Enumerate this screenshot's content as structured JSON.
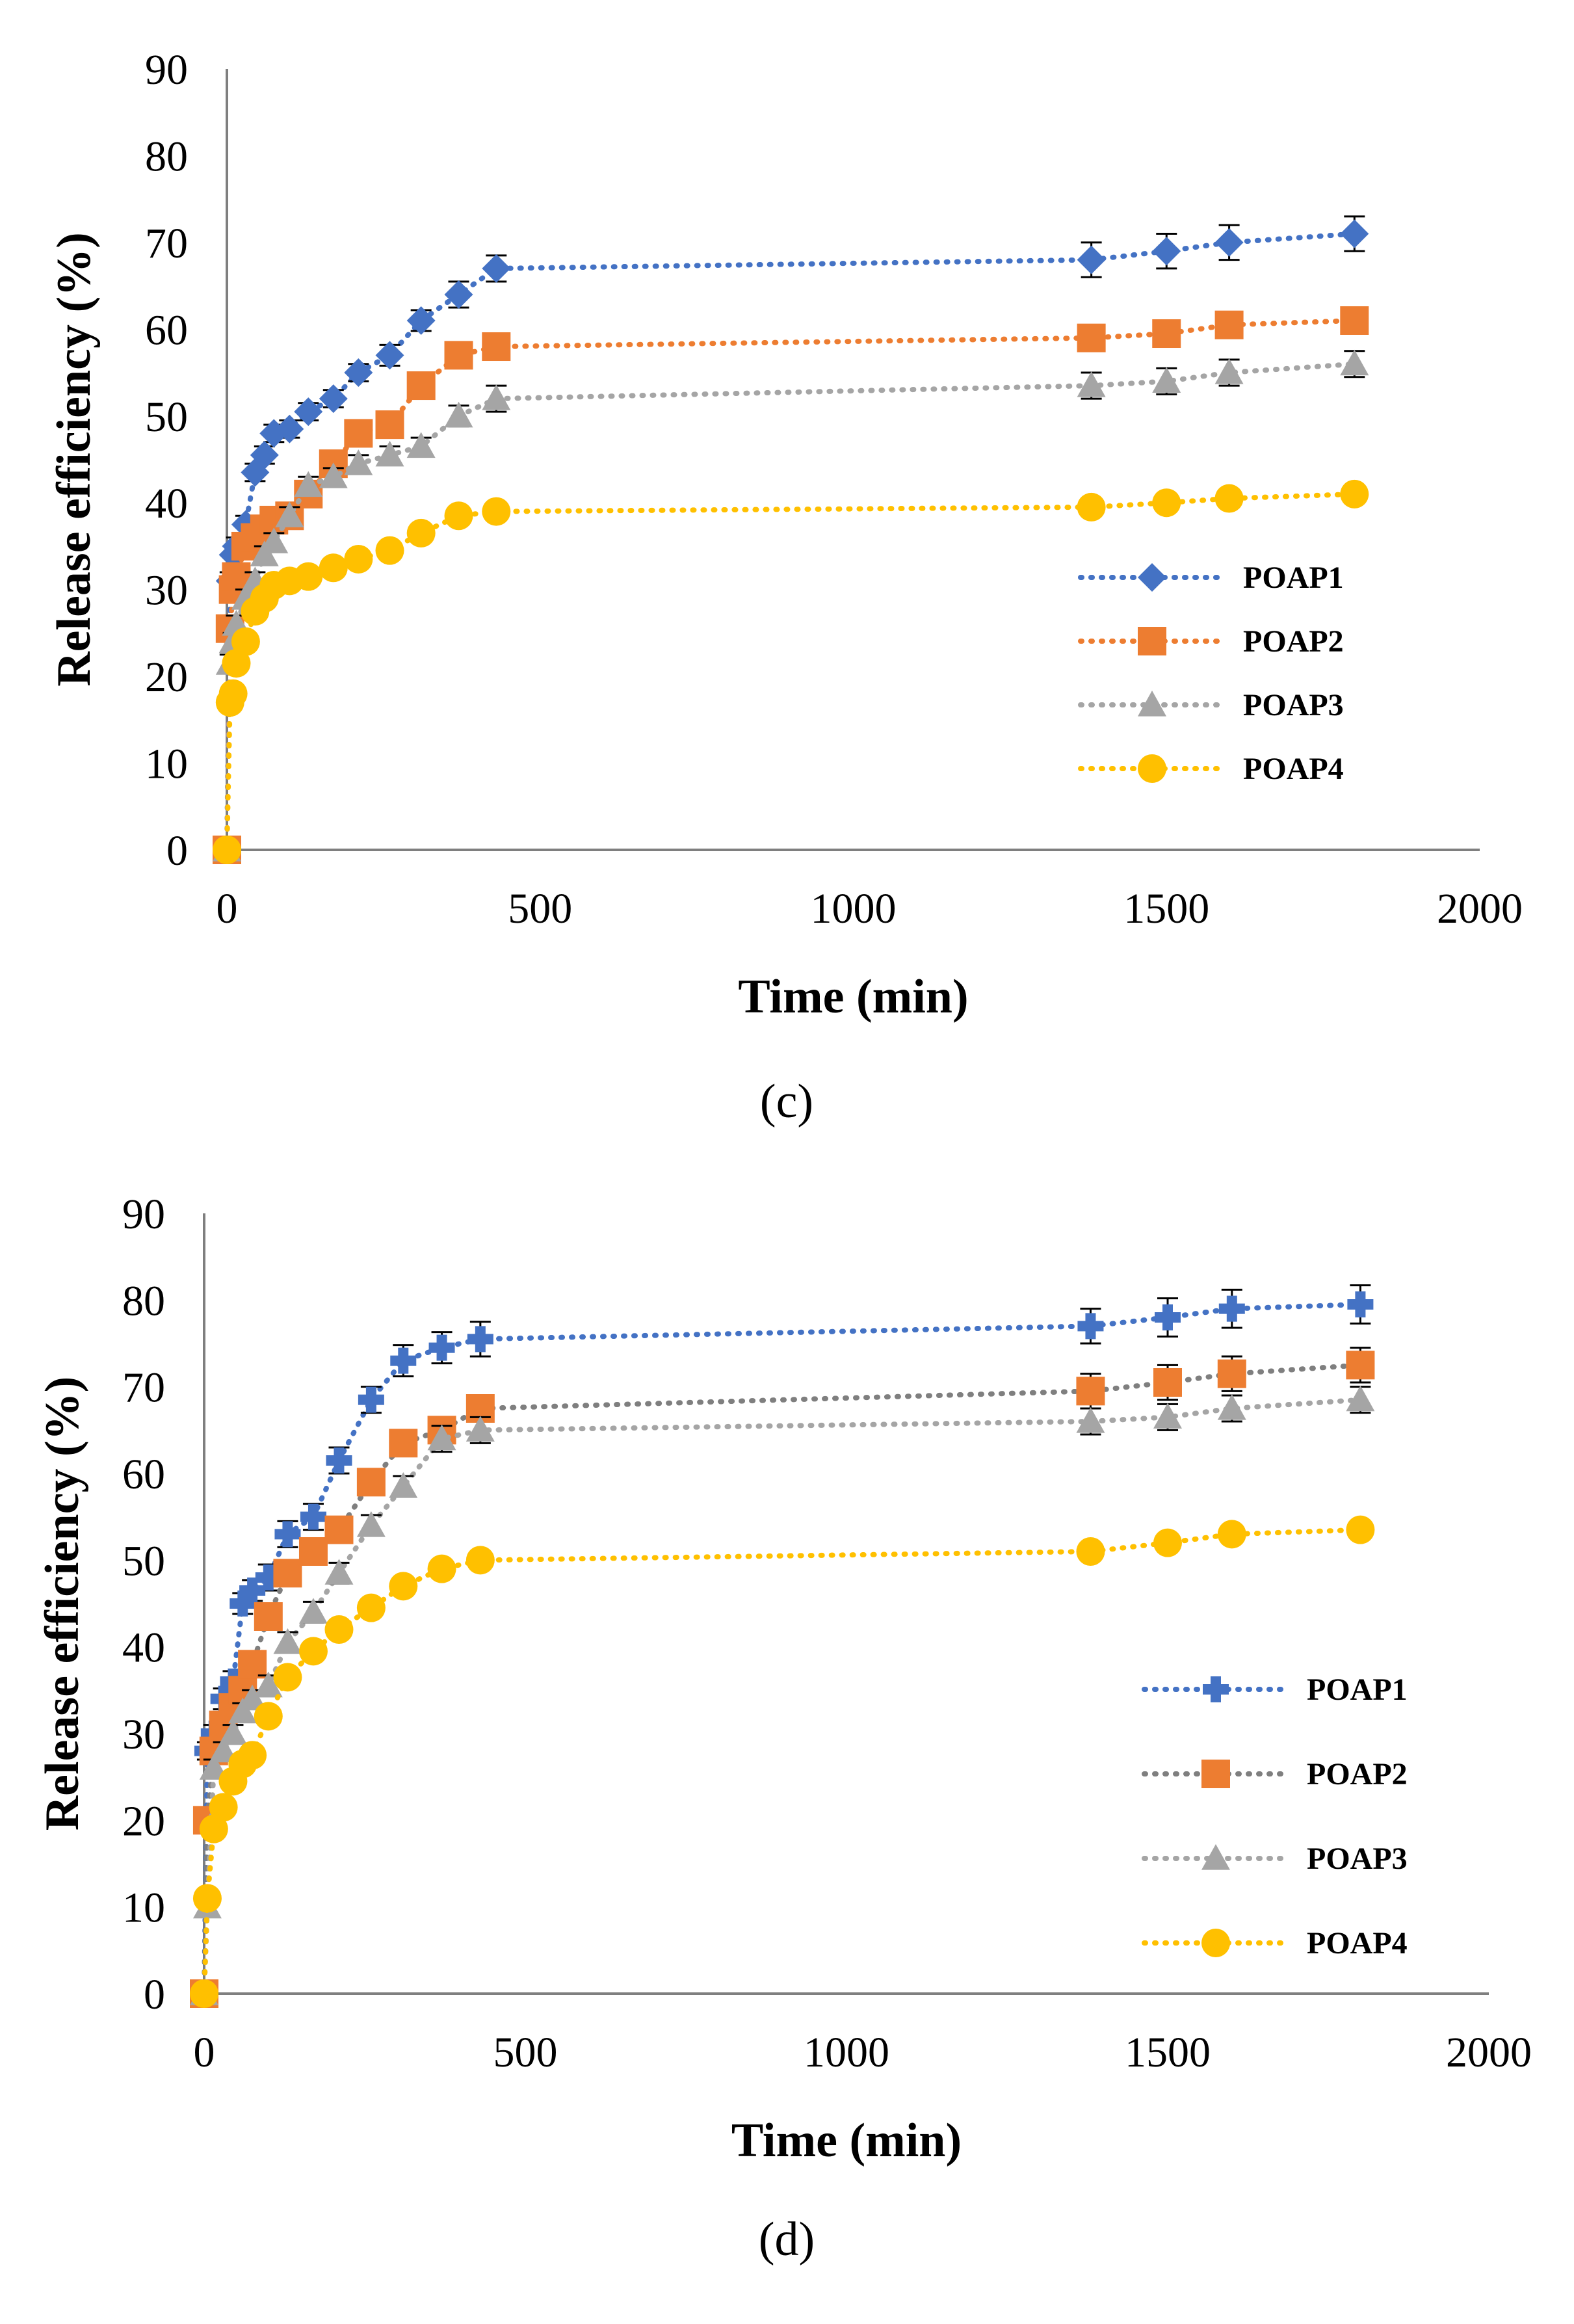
{
  "chart_data": [
    {
      "type": "line",
      "panel_label": "(c)",
      "panel_letter": "c",
      "xlabel": "Time (min)",
      "ylabel": "Release efficiency (%)",
      "xlim": [
        0,
        2000
      ],
      "ylim": [
        0,
        90
      ],
      "xticks": [
        "0",
        "500",
        "1000",
        "1500",
        "2000"
      ],
      "yticks": [
        "0",
        "10",
        "20",
        "30",
        "40",
        "50",
        "60",
        "70",
        "80",
        "90"
      ],
      "grid": false,
      "legend_position": "right",
      "x": [
        0,
        5,
        10,
        15,
        30,
        45,
        60,
        75,
        100,
        130,
        170,
        210,
        260,
        310,
        370,
        430,
        1380,
        1500,
        1600,
        1800
      ],
      "series": [
        {
          "name": "POAP1",
          "color": "#4472c4",
          "marker": "diamond",
          "values": [
            0,
            31,
            34,
            35,
            37.5,
            43.5,
            45.5,
            48,
            48.5,
            50.5,
            52,
            55,
            57,
            61,
            64,
            67,
            68,
            69,
            70,
            71
          ],
          "errors": [
            0,
            1,
            1,
            1,
            1,
            1,
            1,
            1,
            1,
            1,
            1,
            1,
            1.2,
            1.2,
            1.5,
            1.5,
            2,
            2,
            2,
            2
          ]
        },
        {
          "name": "POAP2",
          "color": "#ed7d31",
          "marker": "square",
          "values": [
            0,
            25.5,
            30,
            31.5,
            35,
            36,
            37,
            38,
            38.5,
            41,
            44.5,
            48,
            49,
            53.5,
            57,
            58,
            59,
            59.5,
            60.5,
            61
          ],
          "errors": [
            0,
            1,
            1,
            1,
            1,
            1,
            1,
            1,
            1,
            1,
            1,
            1,
            1,
            1.2,
            1.5,
            1.5,
            1.5,
            1.5,
            1.5,
            1.5
          ]
        },
        {
          "name": "POAP3",
          "color": "#a5a5a5",
          "marker": "triangle",
          "values": [
            0,
            21.5,
            24,
            26,
            29,
            31,
            34,
            35.5,
            38.5,
            42,
            43,
            44.5,
            45.5,
            46.5,
            50,
            52,
            53.5,
            54,
            55,
            56
          ],
          "errors": [
            0,
            1,
            1,
            1,
            1,
            1,
            1,
            1,
            1,
            1,
            1,
            1,
            1,
            1,
            1.2,
            1.5,
            1.5,
            1.5,
            1.5,
            1.5
          ]
        },
        {
          "name": "POAP4",
          "color": "#ffc000",
          "marker": "circle",
          "values": [
            0,
            17,
            18,
            21.5,
            24,
            27.5,
            29,
            30.5,
            31,
            31.5,
            32.5,
            33.5,
            34.5,
            36.5,
            38.5,
            39,
            39.5,
            40,
            40.5,
            41
          ],
          "errors": [
            0,
            0.8,
            0.8,
            0.8,
            0.8,
            0.8,
            0.8,
            0.8,
            0.8,
            0.8,
            0.8,
            0.8,
            0.8,
            0.8,
            0.8,
            0.8,
            0.8,
            0.8,
            0.8,
            0.8
          ]
        }
      ]
    },
    {
      "type": "line",
      "panel_label": "(d)",
      "panel_letter": "d",
      "xlabel": "Time (min)",
      "ylabel": "Release efficiency (%)",
      "xlim": [
        0,
        2000
      ],
      "ylim": [
        0,
        90
      ],
      "xticks": [
        "0",
        "500",
        "1000",
        "1500",
        "2000"
      ],
      "yticks": [
        "0",
        "10",
        "20",
        "30",
        "40",
        "50",
        "60",
        "70",
        "80",
        "90"
      ],
      "grid": false,
      "legend_position": "right",
      "x": [
        0,
        5,
        15,
        30,
        45,
        60,
        75,
        100,
        130,
        170,
        210,
        260,
        310,
        370,
        430,
        1380,
        1500,
        1600,
        1800
      ],
      "series": [
        {
          "name": "POAP1",
          "color": "#4472c4",
          "marker": "plus",
          "values": [
            0,
            28,
            30,
            34,
            36,
            45,
            46.5,
            48,
            53,
            55,
            61.5,
            68.5,
            73,
            74.5,
            75.5,
            77,
            78,
            79,
            79.5
          ],
          "errors": [
            0,
            1,
            1,
            1.2,
            1.2,
            1.2,
            1.2,
            1.5,
            1.5,
            1.5,
            1.5,
            1.5,
            1.8,
            1.8,
            2,
            2,
            2.2,
            2.2,
            2.2
          ]
        },
        {
          "name": "POAP2",
          "color": "#ed7d31",
          "line_color": "#7f7f7f",
          "marker": "square",
          "values": [
            0,
            20,
            28,
            31,
            33,
            35,
            38,
            43.5,
            48.5,
            51,
            53.5,
            59,
            63.5,
            65,
            67.5,
            69.5,
            70.5,
            71.5,
            72.5
          ],
          "errors": [
            0,
            1,
            1,
            1,
            1,
            1,
            1,
            1.5,
            1.5,
            1.5,
            1.5,
            1.5,
            1.5,
            1.5,
            1.5,
            2,
            2,
            2,
            2
          ]
        },
        {
          "name": "POAP3",
          "color": "#a5a5a5",
          "marker": "triangle",
          "values": [
            0,
            10,
            26,
            28,
            30,
            32.5,
            34,
            35.5,
            40.5,
            44,
            48.5,
            54,
            58.5,
            64,
            65,
            66,
            66.5,
            67.5,
            68.5
          ],
          "errors": [
            0,
            1,
            1,
            1,
            1,
            1,
            1,
            1.2,
            1.2,
            1.2,
            1.2,
            1.2,
            1.2,
            1.5,
            1.5,
            1.5,
            1.5,
            1.5,
            1.5
          ]
        },
        {
          "name": "POAP4",
          "color": "#ffc000",
          "marker": "circle",
          "values": [
            0,
            11,
            19,
            21.5,
            24.5,
            26.5,
            27.5,
            32,
            36.5,
            39.5,
            42,
            44.5,
            47,
            49,
            50,
            51,
            52,
            53,
            53.5
          ],
          "errors": [
            0,
            0.8,
            0.8,
            0.8,
            0.8,
            0.8,
            0.8,
            0.8,
            0.8,
            0.8,
            0.8,
            0.8,
            0.8,
            0.8,
            0.8,
            0.8,
            0.8,
            0.8,
            0.8
          ]
        }
      ]
    }
  ]
}
